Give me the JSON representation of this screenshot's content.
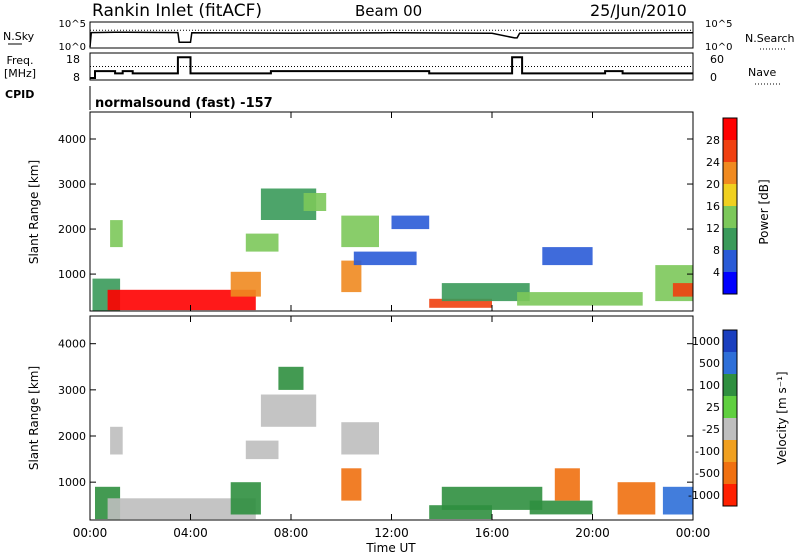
{
  "header": {
    "station": "Rankin Inlet (fitACF)",
    "beam": "Beam 00",
    "date": "25/Jun/2010"
  },
  "strip1": {
    "left_label": "N.Sky",
    "left_ticks": [
      "10^5",
      "10^0"
    ],
    "right_label": "N.Search",
    "right_ticks": [
      "10^5",
      "10^0"
    ]
  },
  "strip2": {
    "left_label_line1": "Freq.",
    "left_label_line2": "[MHz]",
    "left_ticks": [
      "18",
      "8"
    ],
    "right_label": "Nave",
    "right_ticks": [
      "60",
      "0"
    ]
  },
  "cpid": {
    "label": "CPID",
    "value": "normalsound (fast) -157"
  },
  "x_axis": {
    "ticks": [
      "00:00",
      "04:00",
      "08:00",
      "12:00",
      "16:00",
      "20:00",
      "00:00"
    ],
    "label": "Time UT"
  },
  "power_panel": {
    "ylabel": "Slant Range [km]",
    "yticks": [
      "1000",
      "2000",
      "3000",
      "4000"
    ],
    "colorbar_label": "Power [dB]",
    "colorbar_ticks": [
      "4",
      "8",
      "12",
      "16",
      "20",
      "24",
      "28"
    ],
    "colors": [
      "#0000ff",
      "#2a5bd7",
      "#3a9a5a",
      "#7cc85a",
      "#f0d020",
      "#f08a20",
      "#f04010",
      "#ff0000"
    ]
  },
  "velocity_panel": {
    "ylabel": "Slant Range [km]",
    "yticks": [
      "1000",
      "2000",
      "3000",
      "4000"
    ],
    "colorbar_label": "Velocity [m s⁻¹]",
    "colorbar_ticks": [
      "1000",
      "500",
      "100",
      "25",
      "-25",
      "-100",
      "-500",
      "-1000"
    ],
    "colors": [
      "#1a3fbf",
      "#2e6fd8",
      "#2f8f3f",
      "#5fcf3f",
      "#bebebe",
      "#f0a020",
      "#f07010",
      "#ff2000"
    ]
  },
  "chart_data": [
    {
      "type": "line",
      "title": "N.Sky / N.Search",
      "x_range_hours": [
        0,
        24
      ],
      "yscale": "log",
      "ylim": [
        "10^0",
        "10^5"
      ],
      "series": [
        {
          "name": "N.Sky",
          "x": [
            0,
            0.05,
            1,
            3.5,
            3.55,
            4,
            4.05,
            8,
            12,
            16,
            16.9,
            17,
            17.1,
            20,
            24
          ],
          "y": [
            1,
            1000,
            1200,
            1000,
            10,
            10,
            900,
            800,
            900,
            700,
            80,
            80,
            700,
            800,
            900
          ]
        },
        {
          "name": "N.Search",
          "x": [
            0,
            24
          ],
          "y": [
            3000,
            3000
          ]
        }
      ]
    },
    {
      "type": "line",
      "title": "Freq. / Nave",
      "x_range_hours": [
        0,
        24
      ],
      "series": [
        {
          "name": "Freq. [MHz]",
          "x": [
            0,
            0.2,
            0.2,
            1.0,
            1.0,
            1.3,
            1.3,
            1.7,
            1.7,
            3.5,
            3.5,
            4.0,
            4.0,
            7.2,
            7.2,
            13.5,
            13.5,
            16.8,
            16.8,
            17.2,
            17.2,
            20.5,
            20.5,
            21.2,
            21.2,
            24
          ],
          "y": [
            8,
            8,
            11,
            11,
            10,
            10,
            11,
            11,
            10,
            10,
            17,
            17,
            10,
            10,
            11,
            11,
            10,
            10,
            17,
            17,
            10,
            10,
            11,
            11,
            10,
            10
          ]
        },
        {
          "name": "Nave",
          "x": [
            0,
            24
          ],
          "y": [
            30,
            30
          ]
        }
      ]
    },
    {
      "type": "heatmap",
      "title": "Power",
      "xlabel": "Time UT",
      "ylabel": "Slant Range [km]",
      "x_range_hours": [
        0,
        24
      ],
      "ylim": [
        180,
        4600
      ],
      "colorbar": "Power [dB]",
      "regions": [
        {
          "x": [
            0.1,
            1.2
          ],
          "y": [
            180,
            900
          ],
          "value": 8
        },
        {
          "x": [
            0.7,
            6.6
          ],
          "y": [
            200,
            650
          ],
          "value": 28
        },
        {
          "x": [
            0.8,
            1.3
          ],
          "y": [
            1600,
            2200
          ],
          "value": 14
        },
        {
          "x": [
            5.6,
            6.8
          ],
          "y": [
            500,
            1050
          ],
          "value": 22
        },
        {
          "x": [
            6.2,
            7.5
          ],
          "y": [
            1500,
            1900
          ],
          "value": 12
        },
        {
          "x": [
            6.8,
            9.0
          ],
          "y": [
            2200,
            2900
          ],
          "value": 10
        },
        {
          "x": [
            8.5,
            9.4
          ],
          "y": [
            2400,
            2800
          ],
          "value": 14
        },
        {
          "x": [
            10.0,
            11.5
          ],
          "y": [
            1600,
            2300
          ],
          "value": 12
        },
        {
          "x": [
            10.0,
            10.8
          ],
          "y": [
            600,
            1300
          ],
          "value": 20
        },
        {
          "x": [
            10.5,
            13.0
          ],
          "y": [
            1200,
            1500
          ],
          "value": 6
        },
        {
          "x": [
            12.0,
            13.5
          ],
          "y": [
            2000,
            2300
          ],
          "value": 6
        },
        {
          "x": [
            13.5,
            16.0
          ],
          "y": [
            250,
            450
          ],
          "value": 24
        },
        {
          "x": [
            14.0,
            17.5
          ],
          "y": [
            400,
            800
          ],
          "value": 8
        },
        {
          "x": [
            17.0,
            22.0
          ],
          "y": [
            300,
            600
          ],
          "value": 14
        },
        {
          "x": [
            18.0,
            20.0
          ],
          "y": [
            1200,
            1600
          ],
          "value": 6
        },
        {
          "x": [
            22.5,
            24.0
          ],
          "y": [
            400,
            1200
          ],
          "value": 14
        },
        {
          "x": [
            23.2,
            24.0
          ],
          "y": [
            500,
            800
          ],
          "value": 26
        }
      ]
    },
    {
      "type": "heatmap",
      "title": "Velocity",
      "xlabel": "Time UT",
      "ylabel": "Slant Range [km]",
      "x_range_hours": [
        0,
        24
      ],
      "ylim": [
        180,
        4600
      ],
      "colorbar": "Velocity [m s⁻¹]",
      "regions": [
        {
          "x": [
            0.2,
            1.2
          ],
          "y": [
            200,
            900
          ],
          "value": 150
        },
        {
          "x": [
            0.7,
            6.6
          ],
          "y": [
            200,
            650
          ],
          "value": 0
        },
        {
          "x": [
            0.8,
            1.3
          ],
          "y": [
            1600,
            2200
          ],
          "value": 0
        },
        {
          "x": [
            5.6,
            6.8
          ],
          "y": [
            300,
            1000
          ],
          "value": 200
        },
        {
          "x": [
            6.2,
            7.5
          ],
          "y": [
            1500,
            1900
          ],
          "value": 0
        },
        {
          "x": [
            6.8,
            9.0
          ],
          "y": [
            2200,
            2900
          ],
          "value": 0
        },
        {
          "x": [
            7.5,
            8.5
          ],
          "y": [
            3000,
            3500
          ],
          "value": 150
        },
        {
          "x": [
            10.0,
            11.5
          ],
          "y": [
            1600,
            2300
          ],
          "value": 0
        },
        {
          "x": [
            10.0,
            10.8
          ],
          "y": [
            600,
            1300
          ],
          "value": -200
        },
        {
          "x": [
            13.5,
            16.0
          ],
          "y": [
            200,
            500
          ],
          "value": 150
        },
        {
          "x": [
            14.0,
            18.0
          ],
          "y": [
            400,
            900
          ],
          "value": 150
        },
        {
          "x": [
            17.5,
            20.0
          ],
          "y": [
            300,
            600
          ],
          "value": 150
        },
        {
          "x": [
            18.5,
            19.5
          ],
          "y": [
            600,
            1300
          ],
          "value": -200
        },
        {
          "x": [
            21.0,
            22.5
          ],
          "y": [
            300,
            1000
          ],
          "value": -300
        },
        {
          "x": [
            22.8,
            24.0
          ],
          "y": [
            300,
            900
          ],
          "value": 600
        }
      ]
    }
  ]
}
